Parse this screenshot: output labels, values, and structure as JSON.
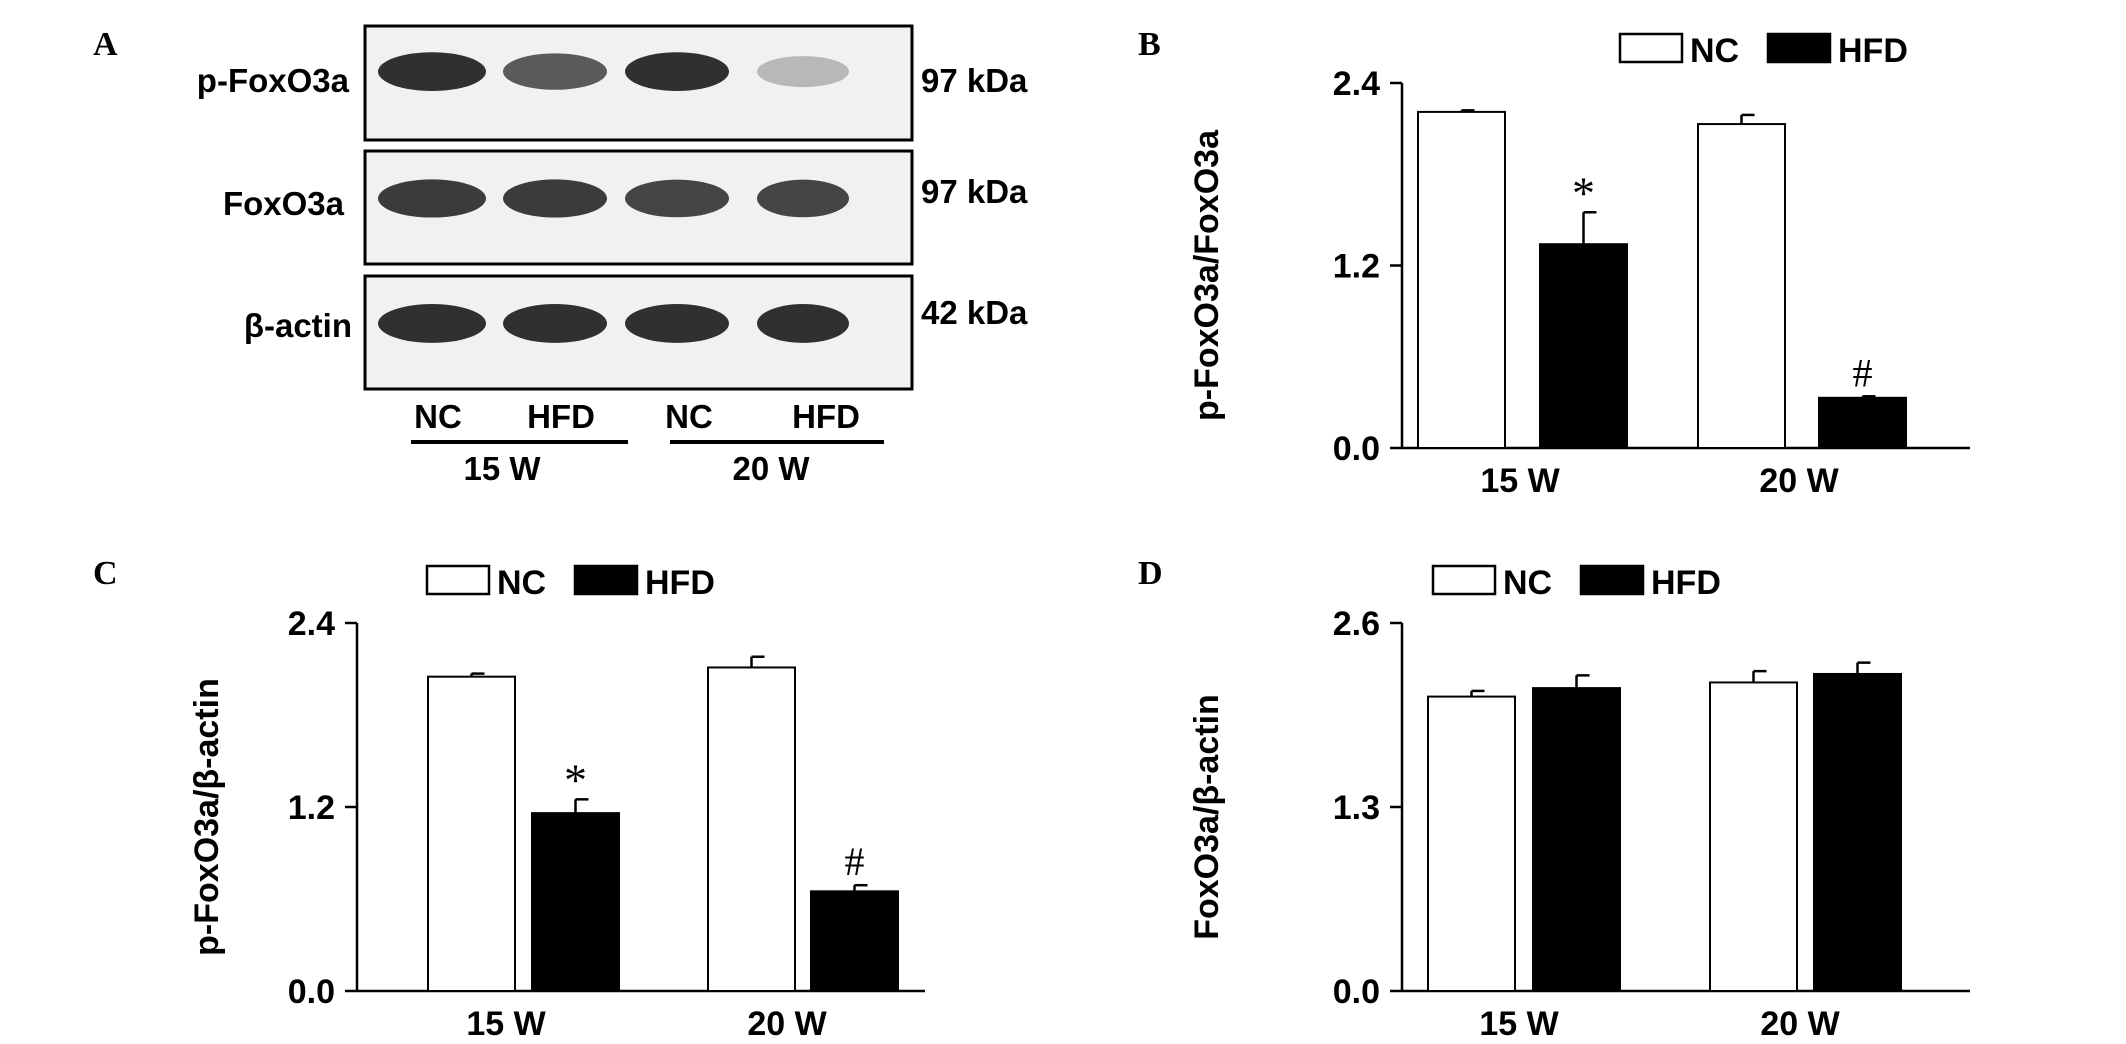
{
  "panel_letters": [
    "A",
    "B",
    "C",
    "D"
  ],
  "blot": {
    "rows": [
      {
        "name": "p-FoxO3a",
        "kda": "97 kDa"
      },
      {
        "name": "FoxO3a",
        "kda": "97 kDa"
      },
      {
        "name": "β-actin",
        "kda": "42 kDa"
      }
    ],
    "lanes": [
      "NC",
      "HFD",
      "NC",
      "HFD"
    ],
    "groups": [
      "15 W",
      "20 W"
    ],
    "band_intensity": [
      [
        0.9,
        0.7,
        0.9,
        0.25
      ],
      [
        0.85,
        0.85,
        0.8,
        0.8
      ],
      [
        0.9,
        0.9,
        0.9,
        0.9
      ]
    ]
  },
  "chart_data": [
    {
      "panel": "B",
      "type": "bar",
      "categories": [
        "15 W",
        "20 W"
      ],
      "ylabel": "p-FoxO3a/FoxO3a",
      "ylim": [
        0,
        2.4
      ],
      "yticks": [
        "0.0",
        "1.2",
        "2.4"
      ],
      "legend": [
        "NC",
        "HFD"
      ],
      "series": [
        {
          "name": "NC",
          "values": [
            2.21,
            2.13
          ],
          "errors": [
            0.01,
            0.06
          ],
          "marks": [
            "",
            ""
          ]
        },
        {
          "name": "HFD",
          "values": [
            1.34,
            0.33
          ],
          "errors": [
            0.21,
            0.01
          ],
          "marks": [
            "*",
            "#"
          ]
        }
      ]
    },
    {
      "panel": "C",
      "type": "bar",
      "categories": [
        "15 W",
        "20 W"
      ],
      "ylabel": "p-FoxO3a/β-actin",
      "ylim": [
        0,
        2.4
      ],
      "yticks": [
        "0.0",
        "1.2",
        "2.4"
      ],
      "legend": [
        "NC",
        "HFD"
      ],
      "series": [
        {
          "name": "NC",
          "values": [
            2.05,
            2.11
          ],
          "errors": [
            0.02,
            0.07
          ],
          "marks": [
            "",
            ""
          ]
        },
        {
          "name": "HFD",
          "values": [
            1.16,
            0.65
          ],
          "errors": [
            0.09,
            0.04
          ],
          "marks": [
            "*",
            "#"
          ]
        }
      ]
    },
    {
      "panel": "D",
      "type": "bar",
      "categories": [
        "15 W",
        "20 W"
      ],
      "ylabel": "FoxO3a/β-actin",
      "ylim": [
        0,
        2.6
      ],
      "yticks": [
        "0.0",
        "1.3",
        "2.6"
      ],
      "legend": [
        "NC",
        "HFD"
      ],
      "series": [
        {
          "name": "NC",
          "values": [
            2.08,
            2.18
          ],
          "errors": [
            0.04,
            0.08
          ],
          "marks": [
            "",
            ""
          ]
        },
        {
          "name": "HFD",
          "values": [
            2.14,
            2.24
          ],
          "errors": [
            0.09,
            0.08
          ],
          "marks": [
            "",
            ""
          ]
        }
      ]
    }
  ]
}
